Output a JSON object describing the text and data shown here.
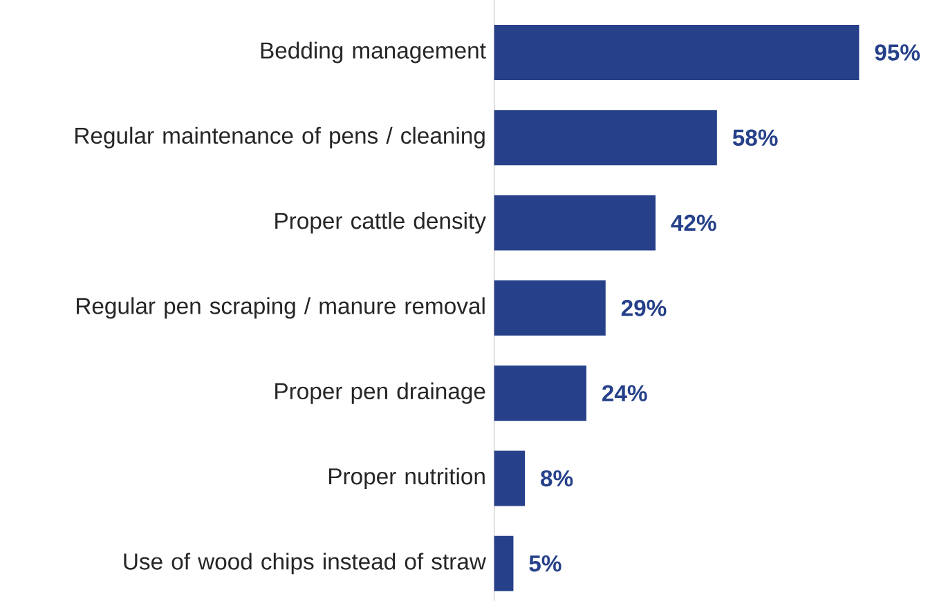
{
  "chart_data": {
    "type": "bar",
    "orientation": "horizontal",
    "color": "#26418a",
    "categories": [
      "Bedding management",
      "Regular maintenance of pens / cleaning",
      "Proper cattle density",
      "Regular pen scraping / manure removal",
      "Proper pen drainage",
      "Proper nutrition",
      "Use of wood chips instead of straw"
    ],
    "values": [
      95,
      58,
      42,
      29,
      24,
      8,
      5
    ],
    "value_labels": [
      "95%",
      "58%",
      "42%",
      "29%",
      "24%",
      "8%",
      "5%"
    ]
  }
}
